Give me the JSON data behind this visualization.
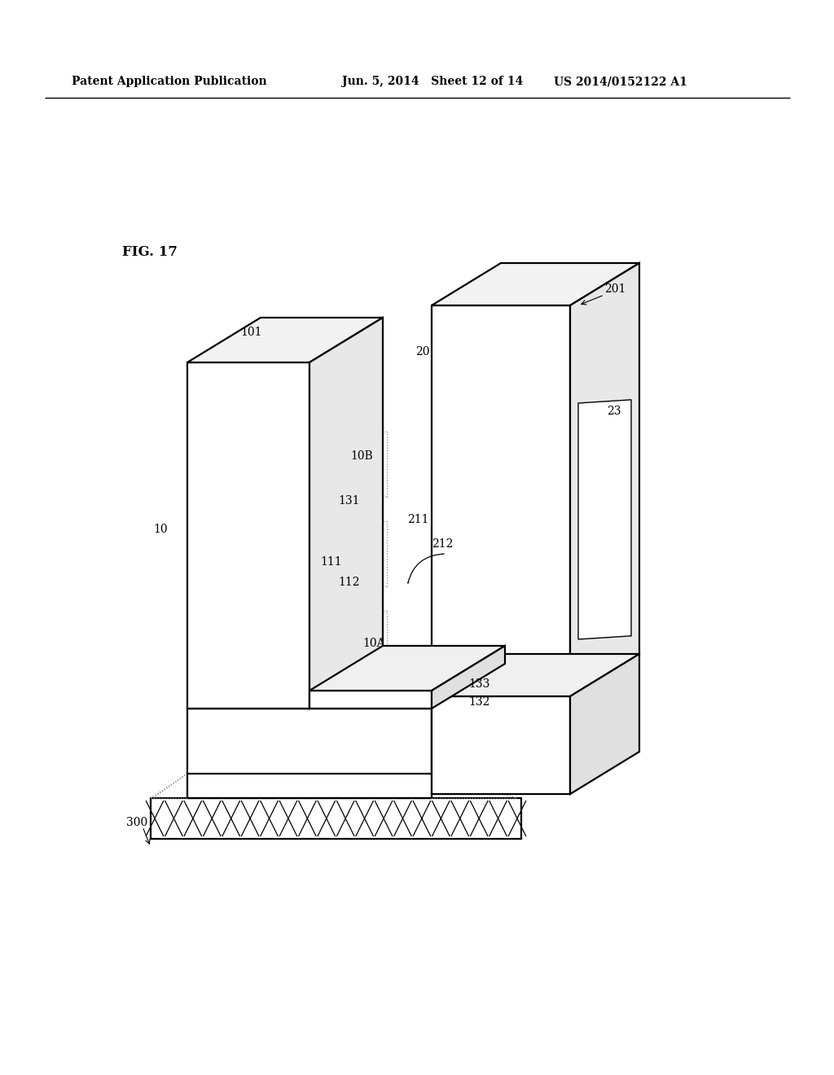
{
  "bg_color": "#ffffff",
  "lc": "#000000",
  "dc": "#888888",
  "header_left": "Patent Application Publication",
  "header_mid": "Jun. 5, 2014   Sheet 12 of 14",
  "header_right": "US 2014/0152122 A1",
  "fig_label": "FIG. 17",
  "lw_main": 1.6,
  "lw_thin": 1.0,
  "lw_dot": 0.9,
  "label_fs": 10
}
